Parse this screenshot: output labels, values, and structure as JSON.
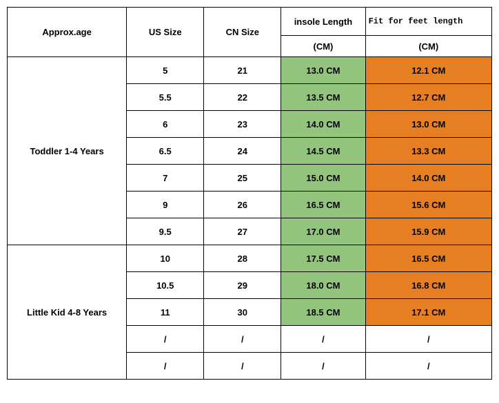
{
  "table": {
    "columns": {
      "age": "Approx.age",
      "us": "US Size",
      "cn": "CN Size",
      "insole_top": "insole Length",
      "fit_top": "Fit for feet length",
      "insole_unit": "(CM)",
      "fit_unit": "(CM)"
    },
    "colors": {
      "green": "#93c47d",
      "orange": "#e67e22",
      "border": "#000000",
      "background": "#ffffff"
    },
    "groups": [
      {
        "age_label": "Toddler 1-4 Years",
        "rows": [
          {
            "us": "5",
            "cn": "21",
            "insole": "13.0 CM",
            "fit": "12.1 CM",
            "insole_bg": "green",
            "fit_bg": "orange"
          },
          {
            "us": "5.5",
            "cn": "22",
            "insole": "13.5 CM",
            "fit": "12.7 CM",
            "insole_bg": "green",
            "fit_bg": "orange"
          },
          {
            "us": "6",
            "cn": "23",
            "insole": "14.0 CM",
            "fit": "13.0 CM",
            "insole_bg": "green",
            "fit_bg": "orange"
          },
          {
            "us": "6.5",
            "cn": "24",
            "insole": "14.5 CM",
            "fit": "13.3 CM",
            "insole_bg": "green",
            "fit_bg": "orange"
          },
          {
            "us": "7",
            "cn": "25",
            "insole": "15.0 CM",
            "fit": "14.0 CM",
            "insole_bg": "green",
            "fit_bg": "orange"
          },
          {
            "us": "9",
            "cn": "26",
            "insole": "16.5 CM",
            "fit": "15.6 CM",
            "insole_bg": "green",
            "fit_bg": "orange"
          },
          {
            "us": "9.5",
            "cn": "27",
            "insole": "17.0 CM",
            "fit": "15.9 CM",
            "insole_bg": "green",
            "fit_bg": "orange"
          }
        ]
      },
      {
        "age_label": "Little Kid 4-8 Years",
        "rows": [
          {
            "us": "10",
            "cn": "28",
            "insole": "17.5 CM",
            "fit": "16.5 CM",
            "insole_bg": "green",
            "fit_bg": "orange"
          },
          {
            "us": "10.5",
            "cn": "29",
            "insole": "18.0 CM",
            "fit": "16.8 CM",
            "insole_bg": "green",
            "fit_bg": "orange"
          },
          {
            "us": "11",
            "cn": "30",
            "insole": "18.5 CM",
            "fit": "17.1 CM",
            "insole_bg": "green",
            "fit_bg": "orange"
          },
          {
            "us": "/",
            "cn": "/",
            "insole": "/",
            "fit": "/",
            "insole_bg": "",
            "fit_bg": ""
          },
          {
            "us": "/",
            "cn": "/",
            "insole": "/",
            "fit": "/",
            "insole_bg": "",
            "fit_bg": ""
          }
        ]
      }
    ]
  }
}
